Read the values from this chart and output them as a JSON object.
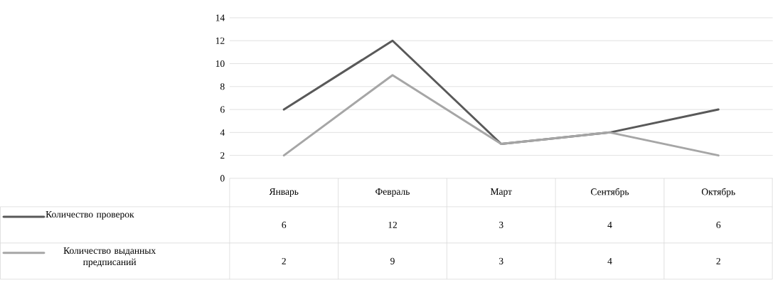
{
  "chart_data": {
    "type": "line",
    "categories": [
      "Январь",
      "Февраль",
      "Март",
      "Сентябрь",
      "Октябрь"
    ],
    "series": [
      {
        "name": "Количество проверок",
        "color": "#595959",
        "values": [
          6,
          12,
          3,
          4,
          6
        ]
      },
      {
        "name": "Количество выданных предписаний",
        "color": "#a6a6a6",
        "values": [
          2,
          9,
          3,
          4,
          2
        ]
      }
    ],
    "ylim": [
      0,
      14
    ],
    "yticks": [
      0,
      2,
      4,
      6,
      8,
      10,
      12,
      14
    ],
    "grid": "y",
    "legend": "left",
    "data_labels": true,
    "line_style": "solid"
  }
}
